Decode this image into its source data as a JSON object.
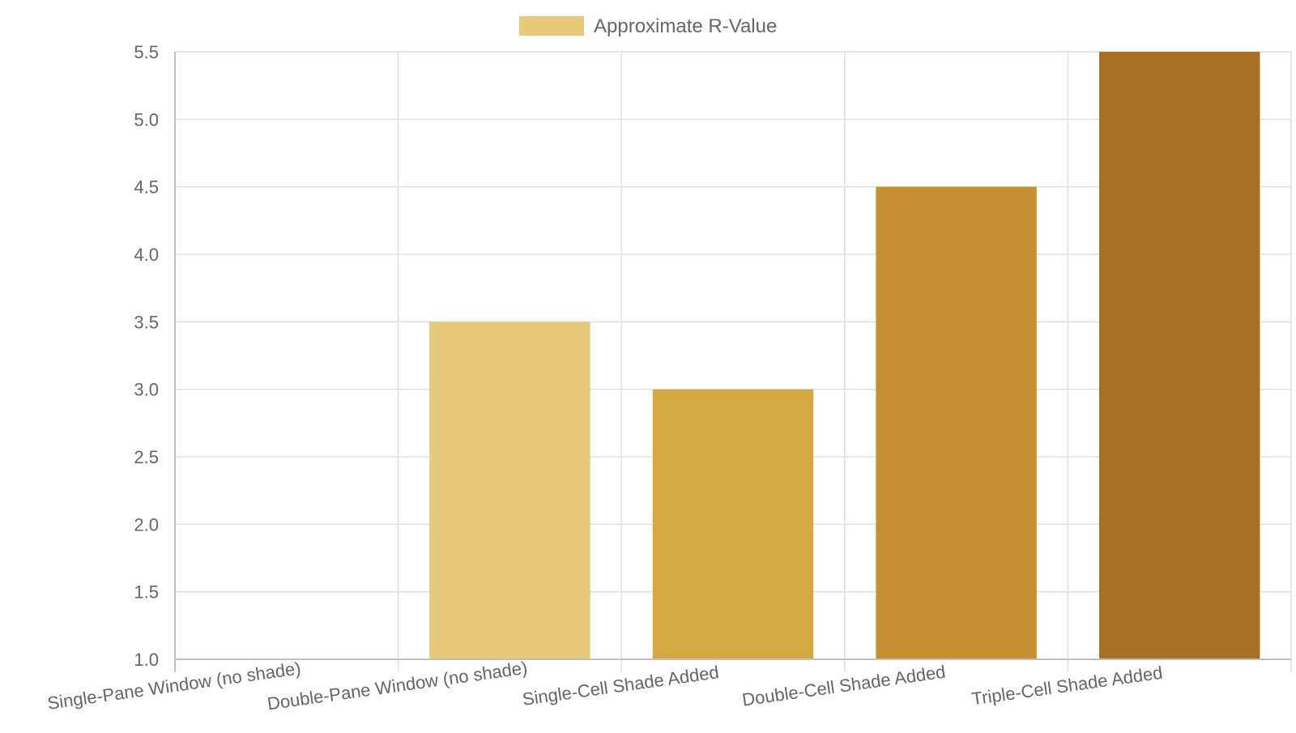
{
  "chart_data": {
    "type": "bar",
    "categories": [
      "Single-Pane Window (no shade)",
      "Double-Pane Window (no shade)",
      "Single-Cell Shade Added",
      "Double-Cell Shade Added",
      "Triple-Cell Shade Added"
    ],
    "series": [
      {
        "name": "Approximate R-Value",
        "values": [
          1.0,
          3.5,
          3.0,
          4.5,
          5.5
        ],
        "colors": [
          "#e8c87a",
          "#e8c87a",
          "#d4a843",
          "#c68f30",
          "#a87022"
        ]
      }
    ],
    "legend": {
      "position": "top",
      "swatch_color": "#e8c87a"
    },
    "ylim": [
      1.0,
      5.5
    ],
    "yticks": [
      "1.0",
      "1.5",
      "2.0",
      "2.5",
      "3.0",
      "3.5",
      "4.0",
      "4.5",
      "5.0",
      "5.5"
    ],
    "grid": true,
    "grid_color": "#e0e0e0",
    "axis_color": "#c0c0c0"
  }
}
